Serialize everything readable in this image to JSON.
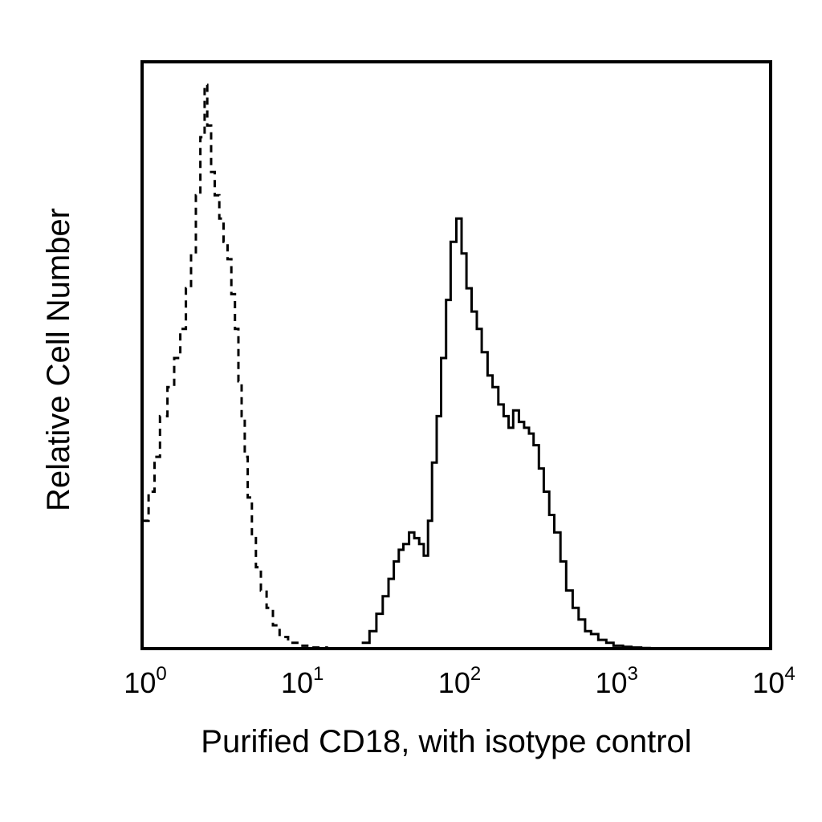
{
  "chart_data": {
    "type": "line",
    "title": "",
    "xlabel": "Purified CD18, with isotype control",
    "ylabel": "Relative Cell Number",
    "xscale": "log",
    "xlim": [
      1,
      10000
    ],
    "ylim": [
      0,
      100
    ],
    "grid": false,
    "legend": "none",
    "x_ticks": [
      {
        "base": "10",
        "exp": "0",
        "value": 1
      },
      {
        "base": "10",
        "exp": "1",
        "value": 10
      },
      {
        "base": "10",
        "exp": "2",
        "value": 100
      },
      {
        "base": "10",
        "exp": "3",
        "value": 1000
      },
      {
        "base": "10",
        "exp": "4",
        "value": 10000
      }
    ],
    "series": [
      {
        "style": "dashed",
        "color": "#000000",
        "x": [
          1.0,
          1.1,
          1.2,
          1.3,
          1.45,
          1.6,
          1.75,
          1.9,
          2.05,
          2.2,
          2.35,
          2.5,
          2.6,
          2.75,
          2.9,
          3.1,
          3.3,
          3.5,
          3.7,
          3.9,
          4.1,
          4.3,
          4.5,
          4.7,
          5.0,
          5.3,
          5.7,
          6.2,
          6.8,
          7.5,
          8.5,
          10,
          12,
          15,
          20
        ],
        "y": [
          22,
          27,
          33,
          40,
          45,
          50,
          55,
          62,
          68,
          78,
          88,
          97,
          90,
          82,
          78,
          74,
          70,
          67,
          61,
          55,
          46,
          40,
          33,
          26,
          19,
          14,
          10,
          7,
          4,
          2,
          1,
          0.5,
          0.2,
          0,
          0
        ]
      },
      {
        "style": "solid",
        "color": "#000000",
        "x": [
          25,
          28,
          31,
          34,
          37,
          40,
          43,
          46,
          50,
          54,
          58,
          62,
          66,
          70,
          75,
          80,
          86,
          92,
          100,
          108,
          116,
          125,
          135,
          145,
          158,
          170,
          185,
          200,
          215,
          230,
          250,
          270,
          290,
          310,
          335,
          360,
          390,
          420,
          460,
          500,
          550,
          600,
          660,
          720,
          800,
          900,
          1000,
          1150,
          1300,
          1500,
          1700,
          2000,
          2500
        ],
        "y": [
          1,
          3,
          6,
          9,
          12,
          15,
          17,
          18,
          20,
          19,
          18,
          16,
          22,
          32,
          40,
          50,
          60,
          70,
          74,
          68,
          62,
          58,
          55,
          51,
          47,
          45,
          42,
          40,
          38,
          41,
          39,
          38,
          37,
          35,
          31,
          27,
          23,
          20,
          15,
          10,
          7,
          5,
          3,
          2.5,
          1.5,
          1,
          0.5,
          0.3,
          0.2,
          0.1,
          0,
          0,
          0
        ]
      }
    ]
  }
}
